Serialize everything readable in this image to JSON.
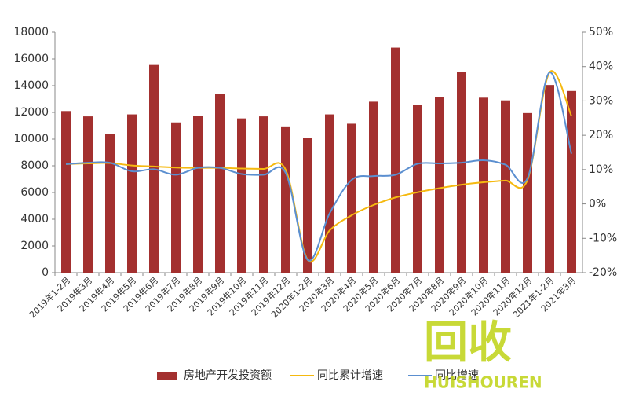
{
  "chart_data": {
    "type": "bar-line",
    "categories": [
      "2019年1-2月",
      "2019年3月",
      "2019年4月",
      "2019年5月",
      "2019年6月",
      "2019年7月",
      "2019年8月",
      "2019年9月",
      "2019年10月",
      "2019年11月",
      "2019年12月",
      "2020年1-2月",
      "2020年3月",
      "2020年4月",
      "2020年5月",
      "2020年6月",
      "2020年7月",
      "2020年8月",
      "2020年9月",
      "2020年10月",
      "2020年11月",
      "2020年12月",
      "2021年1-2月",
      "2021年3月"
    ],
    "series": [
      {
        "name": "房地产开发投资额",
        "type": "bar",
        "color": "#a3302f",
        "values": [
          12100,
          11700,
          10400,
          11850,
          15550,
          11250,
          11750,
          13400,
          11550,
          11700,
          10950,
          10100,
          11850,
          11150,
          12800,
          16850,
          12550,
          13150,
          15050,
          13100,
          12900,
          11950,
          14050,
          13600
        ]
      },
      {
        "name": "同比累计增速",
        "type": "line",
        "axis": "y2",
        "color": "#f5b90f",
        "values": [
          11.6,
          11.8,
          11.9,
          11.2,
          10.9,
          10.6,
          10.5,
          10.5,
          10.3,
          10.2,
          9.9,
          -16.3,
          -7.7,
          -3.3,
          -0.3,
          1.9,
          3.4,
          4.6,
          5.6,
          6.3,
          6.8,
          7.0,
          38.3,
          25.6
        ]
      },
      {
        "name": "同比增速",
        "type": "line",
        "axis": "y2",
        "color": "#5b8fd0",
        "values": [
          11.6,
          12.0,
          12.0,
          9.5,
          10.1,
          8.5,
          10.5,
          10.5,
          8.7,
          8.5,
          9.0,
          -16.3,
          -2.7,
          7.0,
          8.1,
          8.5,
          11.7,
          11.8,
          12.0,
          12.7,
          11.4,
          7.5,
          38.3,
          14.6
        ]
      }
    ],
    "ylim": [
      0,
      18000
    ],
    "yticks": [
      0,
      2000,
      4000,
      6000,
      8000,
      10000,
      12000,
      14000,
      16000,
      18000
    ],
    "y2lim": [
      -20,
      50
    ],
    "y2ticks": [
      {
        "value": -20,
        "label": "-20%"
      },
      {
        "value": -10,
        "label": "-10%"
      },
      {
        "value": 0,
        "label": "0%"
      },
      {
        "value": 10,
        "label": "10%"
      },
      {
        "value": 20,
        "label": "20%"
      },
      {
        "value": 30,
        "label": "30%"
      },
      {
        "value": 40,
        "label": "40%"
      },
      {
        "value": 50,
        "label": "50%"
      }
    ],
    "legend": "bottom",
    "watermark": {
      "logo": "回收",
      "text": "HUISHOUREN"
    }
  }
}
